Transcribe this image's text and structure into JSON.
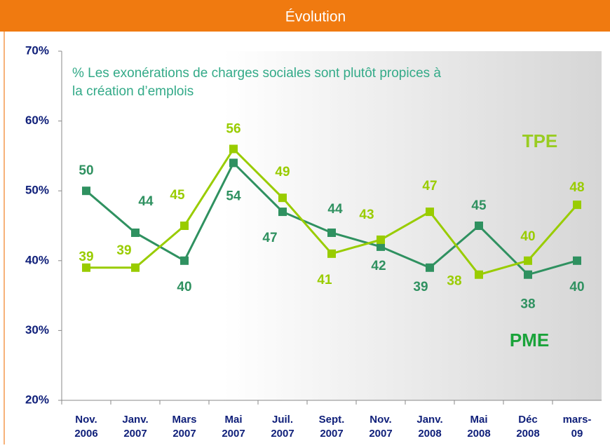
{
  "header": {
    "title": "Évolution"
  },
  "chart_data": {
    "type": "line",
    "subtitle": "% Les exonérations de charges sociales sont plutôt propices à\nla création d’emplois",
    "categories": [
      "Nov.\n2006",
      "Janv.\n2007",
      "Mars\n2007",
      "Mai\n2007",
      "Juil.\n2007",
      "Sept.\n2007",
      "Nov.\n2007",
      "Janv.\n2008",
      "Mai\n2008",
      "Déc\n2008",
      "mars-\n09"
    ],
    "series": [
      {
        "name": "PME",
        "color": "#2f9160",
        "label_color": "#2f9160",
        "legend_color": "#1aa33a",
        "values": [
          50,
          44,
          40,
          54,
          47,
          44,
          42,
          39,
          45,
          38,
          40
        ]
      },
      {
        "name": "TPE",
        "color": "#99cc00",
        "label_color": "#99cc00",
        "legend_color": "#99cc22",
        "values": [
          39,
          39,
          45,
          56,
          49,
          41,
          43,
          47,
          38,
          40,
          48
        ]
      }
    ],
    "ylim": [
      20,
      70
    ],
    "yticks": [
      {
        "value": 20,
        "label": "20%"
      },
      {
        "value": 30,
        "label": "30%"
      },
      {
        "value": 40,
        "label": "40%"
      },
      {
        "value": 50,
        "label": "50%"
      },
      {
        "value": 60,
        "label": "60%"
      },
      {
        "value": 70,
        "label": "70%"
      }
    ]
  }
}
